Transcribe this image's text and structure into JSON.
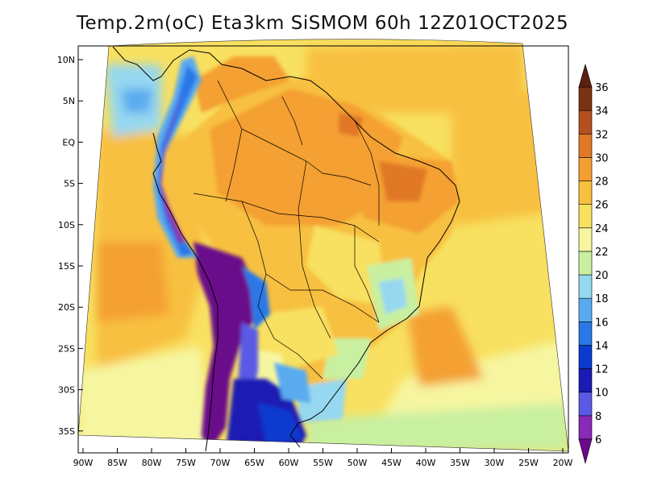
{
  "title": "Temp.2m(oC) Eta3km SiSMOM 60h 12Z01OCT2025",
  "chart_data": {
    "type": "heatmap",
    "variable": "2m temperature",
    "unit": "oC",
    "lon_range": [
      -90,
      -20
    ],
    "lat_range": [
      -37,
      11
    ],
    "lat_ticks": [
      "10N",
      "5N",
      "EQ",
      "5S",
      "10S",
      "15S",
      "20S",
      "25S",
      "30S",
      "35S"
    ],
    "lon_ticks": [
      "90W",
      "85W",
      "80W",
      "75W",
      "70W",
      "65W",
      "60W",
      "55W",
      "50W",
      "45W",
      "40W",
      "35W",
      "30W",
      "25W",
      "20W"
    ],
    "colorbar": {
      "levels": [
        "6",
        "8",
        "10",
        "12",
        "14",
        "16",
        "18",
        "20",
        "22",
        "24",
        "26",
        "28",
        "30",
        "32",
        "34",
        "36"
      ],
      "colors": [
        "#6a0a8a",
        "#8a2ab8",
        "#5a5ae6",
        "#1a1ab4",
        "#0a3ad0",
        "#2a78e8",
        "#5aaaf0",
        "#96d8f0",
        "#c8f0a0",
        "#f6f6a0",
        "#f8e060",
        "#f8c040",
        "#f4a030",
        "#e07828",
        "#b45020",
        "#7a3214",
        "#5a2010"
      ],
      "under_color": "#6a0a8a",
      "over_color": "#5a2010"
    }
  }
}
